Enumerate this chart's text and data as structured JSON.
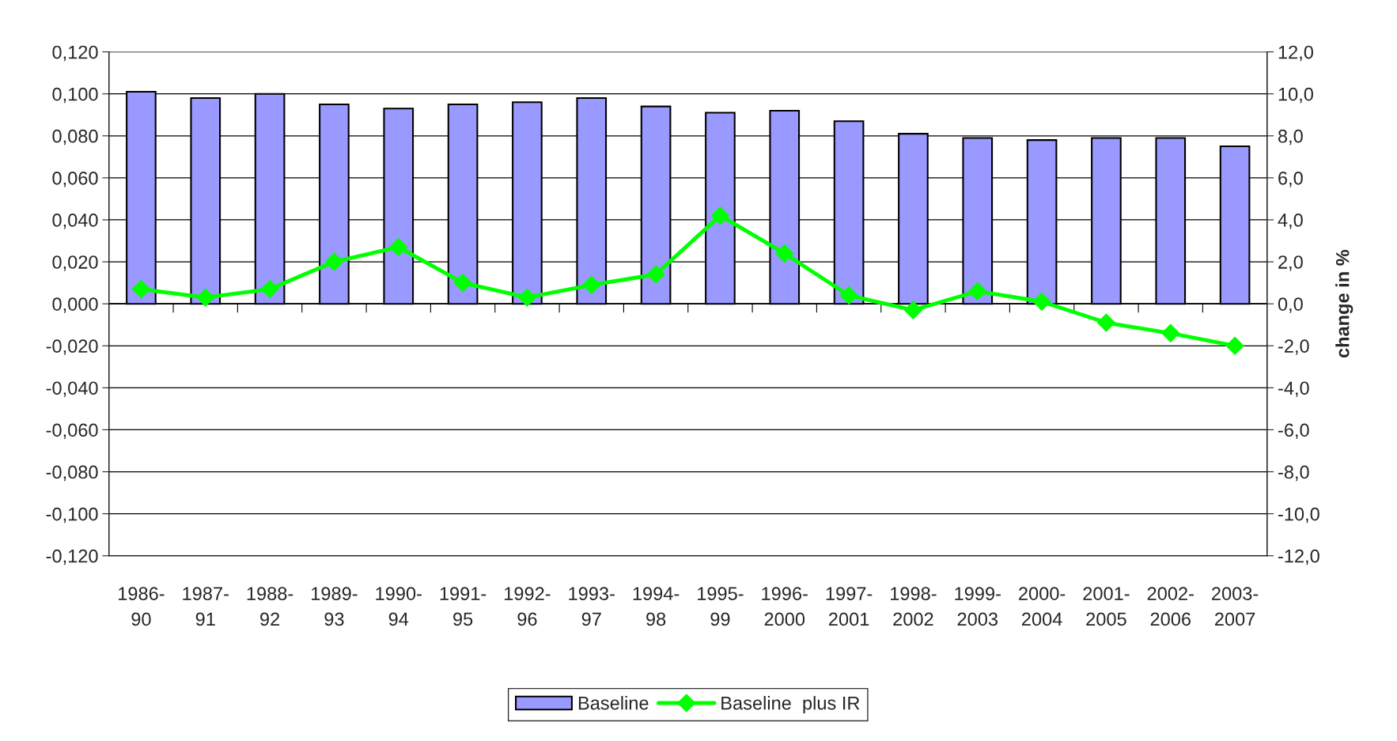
{
  "chart_data": {
    "type": "bar",
    "y2label": "change in %",
    "categories": [
      "1986-\n90",
      "1987-\n91",
      "1988-\n92",
      "1989-\n93",
      "1990-\n94",
      "1991-\n95",
      "1992-\n96",
      "1993-\n97",
      "1994-\n98",
      "1995-\n99",
      "1996-\n2000",
      "1997-\n2001",
      "1998-\n2002",
      "1999-\n2003",
      "2000-\n2004",
      "2001-\n2005",
      "2002-\n2006",
      "2003-\n2007"
    ],
    "series": [
      {
        "name": "Baseline",
        "color": "#9999ff",
        "values": [
          0.101,
          0.098,
          0.1,
          0.095,
          0.093,
          0.095,
          0.096,
          0.098,
          0.094,
          0.091,
          0.092,
          0.087,
          0.081,
          0.079,
          0.078,
          0.079,
          0.079,
          0.075
        ]
      },
      {
        "name": "Baseline  plus IR",
        "type": "line",
        "axis": "y2",
        "color": "#00ff00",
        "marker": "diamond",
        "values": [
          0.7,
          0.3,
          0.7,
          2.0,
          2.7,
          1.0,
          0.3,
          0.9,
          1.4,
          4.2,
          2.4,
          0.4,
          -0.3,
          0.6,
          0.1,
          -0.9,
          -1.4,
          -2.0
        ]
      }
    ],
    "ylim": [
      -0.12,
      0.12
    ],
    "yticks": [
      {
        "value": -0.12,
        "label": "-0,120"
      },
      {
        "value": -0.1,
        "label": "-0,100"
      },
      {
        "value": -0.08,
        "label": "-0,080"
      },
      {
        "value": -0.06,
        "label": "-0,060"
      },
      {
        "value": -0.04,
        "label": "-0,040"
      },
      {
        "value": -0.02,
        "label": "-0,020"
      },
      {
        "value": 0,
        "label": "0,000"
      },
      {
        "value": 0.02,
        "label": "0,020"
      },
      {
        "value": 0.04,
        "label": "0,040"
      },
      {
        "value": 0.06,
        "label": "0,060"
      },
      {
        "value": 0.08,
        "label": "0,080"
      },
      {
        "value": 0.1,
        "label": "0,100"
      },
      {
        "value": 0.12,
        "label": "0,120"
      }
    ],
    "y2lim": [
      -12,
      12
    ],
    "y2ticks": [
      {
        "value": -12,
        "label": "-12,0"
      },
      {
        "value": -10,
        "label": "-10,0"
      },
      {
        "value": -8,
        "label": "-8,0"
      },
      {
        "value": -6,
        "label": "-6,0"
      },
      {
        "value": -4,
        "label": "-4,0"
      },
      {
        "value": -2,
        "label": "-2,0"
      },
      {
        "value": 0,
        "label": "0,0"
      },
      {
        "value": 2,
        "label": "2,0"
      },
      {
        "value": 4,
        "label": "4,0"
      },
      {
        "value": 6,
        "label": "6,0"
      },
      {
        "value": 8,
        "label": "8,0"
      },
      {
        "value": 10,
        "label": "10,0"
      },
      {
        "value": 12,
        "label": "12,0"
      }
    ],
    "grid": "y",
    "legend": "bottom"
  }
}
